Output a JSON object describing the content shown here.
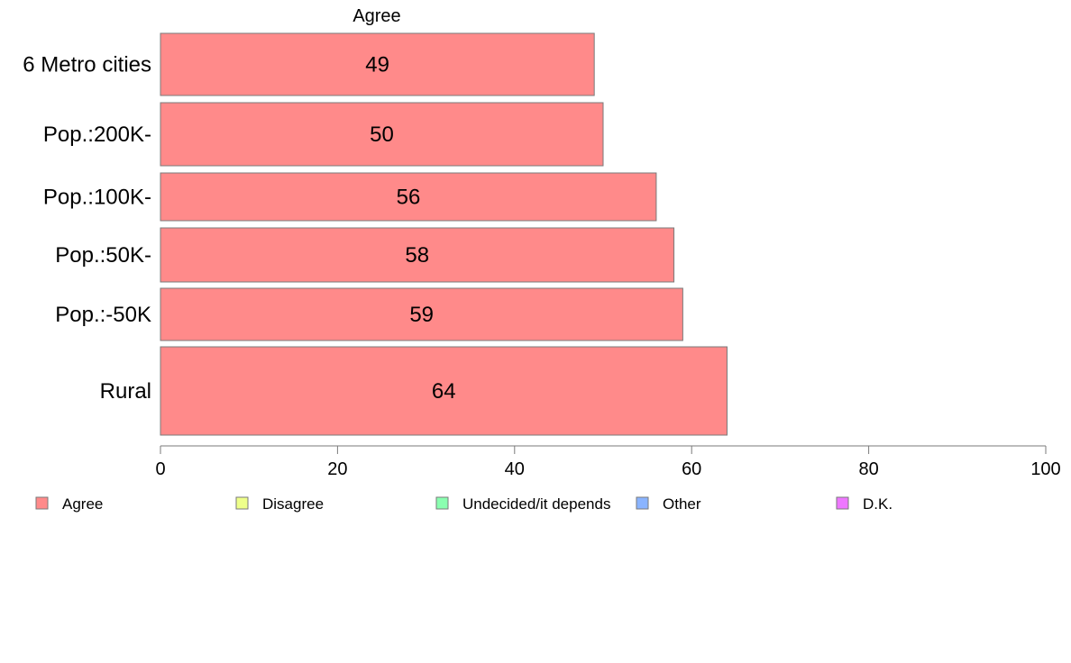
{
  "chart_data": {
    "type": "bar",
    "orientation": "horizontal",
    "title": "Agree",
    "categories": [
      "6 Metro cities",
      "Pop.:200K-",
      "Pop.:100K-",
      "Pop.:50K-",
      "Pop.:-50K",
      "Rural"
    ],
    "series": [
      {
        "name": "Agree",
        "color": "#ff8a8a",
        "values": [
          49,
          50,
          56,
          58,
          59,
          64
        ],
        "data_labels": [
          "49",
          "50",
          "56",
          "58",
          "59",
          "64"
        ]
      }
    ],
    "xlim": [
      0,
      100
    ],
    "xticks": [
      0,
      20,
      40,
      60,
      80,
      100
    ],
    "xtick_labels": [
      "0",
      "20",
      "40",
      "60",
      "80",
      "100"
    ],
    "grid": false,
    "legend_position": "bottom",
    "legend": [
      {
        "label": "Agree",
        "color": "#ff8a8a"
      },
      {
        "label": "Disagree",
        "color": "#eeff8a"
      },
      {
        "label": "Undecided/it depends",
        "color": "#8affb0"
      },
      {
        "label": "Other",
        "color": "#8ab4ff"
      },
      {
        "label": "D.K.",
        "color": "#ee77ff"
      }
    ]
  }
}
